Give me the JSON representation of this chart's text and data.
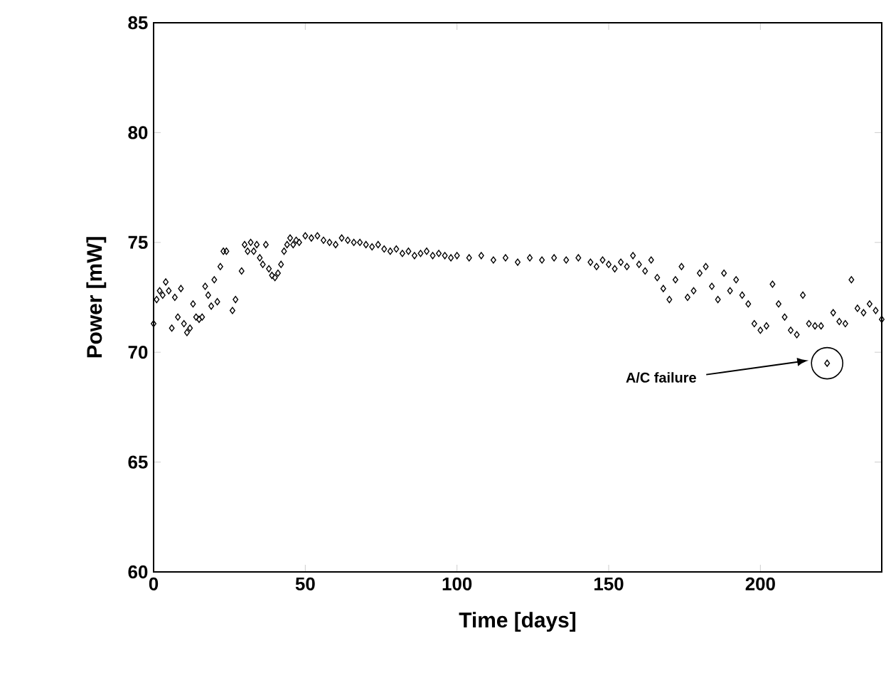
{
  "chart_data": {
    "type": "scatter",
    "xlabel": "Time  [days]",
    "ylabel": "Power  [mW]",
    "marker": "diamond",
    "grid": false,
    "xlim": [
      0,
      240
    ],
    "xticks": [
      0,
      50,
      100,
      150,
      200
    ],
    "ylim": [
      60,
      85
    ],
    "yticks": [
      60,
      65,
      70,
      75,
      80,
      85
    ],
    "annotations": [
      "A/C failure"
    ],
    "series": [
      {
        "color": "#000000",
        "x": [
          0,
          1,
          2,
          3,
          4,
          5,
          6,
          7,
          8,
          9,
          10,
          11,
          12,
          13,
          14,
          15,
          16,
          17,
          18,
          19,
          20,
          21,
          22,
          23,
          24,
          26,
          27,
          29,
          30,
          31,
          32,
          33,
          34,
          35,
          36,
          37,
          38,
          39,
          40,
          41,
          42,
          43,
          44,
          45,
          46,
          47,
          48,
          50,
          52,
          54,
          56,
          58,
          60,
          62,
          64,
          66,
          68,
          70,
          72,
          74,
          76,
          78,
          80,
          82,
          84,
          86,
          88,
          90,
          92,
          94,
          96,
          98,
          100,
          104,
          108,
          112,
          116,
          120,
          124,
          128,
          132,
          136,
          140,
          144,
          146,
          148,
          150,
          152,
          154,
          156,
          158,
          160,
          162,
          164,
          166,
          168,
          170,
          172,
          174,
          176,
          178,
          180,
          182,
          184,
          186,
          188,
          190,
          192,
          194,
          196,
          198,
          200,
          202,
          204,
          206,
          208,
          210,
          212,
          214,
          216,
          218,
          220,
          222,
          224,
          226,
          228,
          230,
          232,
          234,
          236,
          238,
          240
        ],
        "values": [
          71.3,
          72.4,
          72.8,
          72.6,
          73.2,
          72.8,
          71.1,
          72.5,
          71.6,
          72.9,
          71.3,
          70.9,
          71.1,
          72.2,
          71.6,
          71.5,
          71.6,
          73.0,
          72.6,
          72.1,
          73.3,
          72.3,
          73.9,
          74.6,
          74.6,
          71.9,
          72.4,
          73.7,
          74.9,
          74.6,
          75.0,
          74.6,
          74.9,
          74.3,
          74.0,
          74.9,
          73.8,
          73.5,
          73.4,
          73.6,
          74.0,
          74.6,
          74.9,
          75.2,
          74.9,
          75.1,
          75.0,
          75.3,
          75.2,
          75.3,
          75.1,
          75.0,
          74.9,
          75.2,
          75.1,
          75.0,
          75.0,
          74.9,
          74.8,
          74.9,
          74.7,
          74.6,
          74.7,
          74.5,
          74.6,
          74.4,
          74.5,
          74.6,
          74.4,
          74.5,
          74.4,
          74.3,
          74.4,
          74.3,
          74.4,
          74.2,
          74.3,
          74.1,
          74.3,
          74.2,
          74.3,
          74.2,
          74.3,
          74.1,
          73.9,
          74.2,
          74.0,
          73.8,
          74.1,
          73.9,
          74.4,
          74.0,
          73.7,
          74.2,
          73.4,
          72.9,
          72.4,
          73.3,
          73.9,
          72.5,
          72.8,
          73.6,
          73.9,
          73.0,
          72.4,
          73.6,
          72.8,
          73.3,
          72.6,
          72.2,
          71.3,
          71.0,
          71.2,
          73.1,
          72.2,
          71.6,
          71.0,
          70.8,
          72.6,
          71.3,
          71.2,
          71.2,
          69.5,
          71.8,
          71.4,
          71.3,
          73.3,
          72.0,
          71.8,
          72.2,
          71.9,
          71.5
        ]
      }
    ]
  }
}
